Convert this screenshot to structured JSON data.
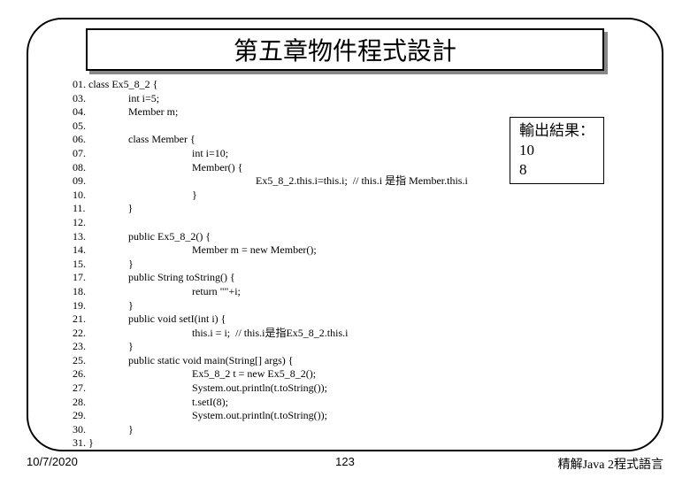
{
  "title": "第五章物件程式設計",
  "code_lines": [
    "01. class Ex5_8_2 {",
    "03.                int i=5;",
    "04.                Member m;",
    "05.",
    "06.                class Member {",
    "07.                                        int i=10;",
    "08.                                        Member() {",
    "09.                                                                Ex5_8_2.this.i=this.i;  // this.i 是指 Member.this.i",
    "10.                                        }",
    "11.                }",
    "12.",
    "13.                public Ex5_8_2() {",
    "14.                                        Member m = new Member();",
    "15.                }",
    "17.                public String toString() {",
    "18.                                        return \"\"+i;",
    "19.                }",
    "21.                public void setI(int i) {",
    "22.                                        this.i = i;  // this.i是指Ex5_8_2.this.i",
    "23.                }",
    "25.                public static void main(String[] args) {",
    "26.                                        Ex5_8_2 t = new Ex5_8_2();",
    "27.                                        System.out.println(t.toString());",
    "28.                                        t.setI(8);",
    "29.                                        System.out.println(t.toString());",
    "30.                }",
    "31. }"
  ],
  "output": {
    "label": "輸出結果：",
    "line1": "10",
    "line2": " 8"
  },
  "footer": {
    "date": "10/7/2020",
    "page": "123",
    "right": "精解Java 2程式語言"
  }
}
